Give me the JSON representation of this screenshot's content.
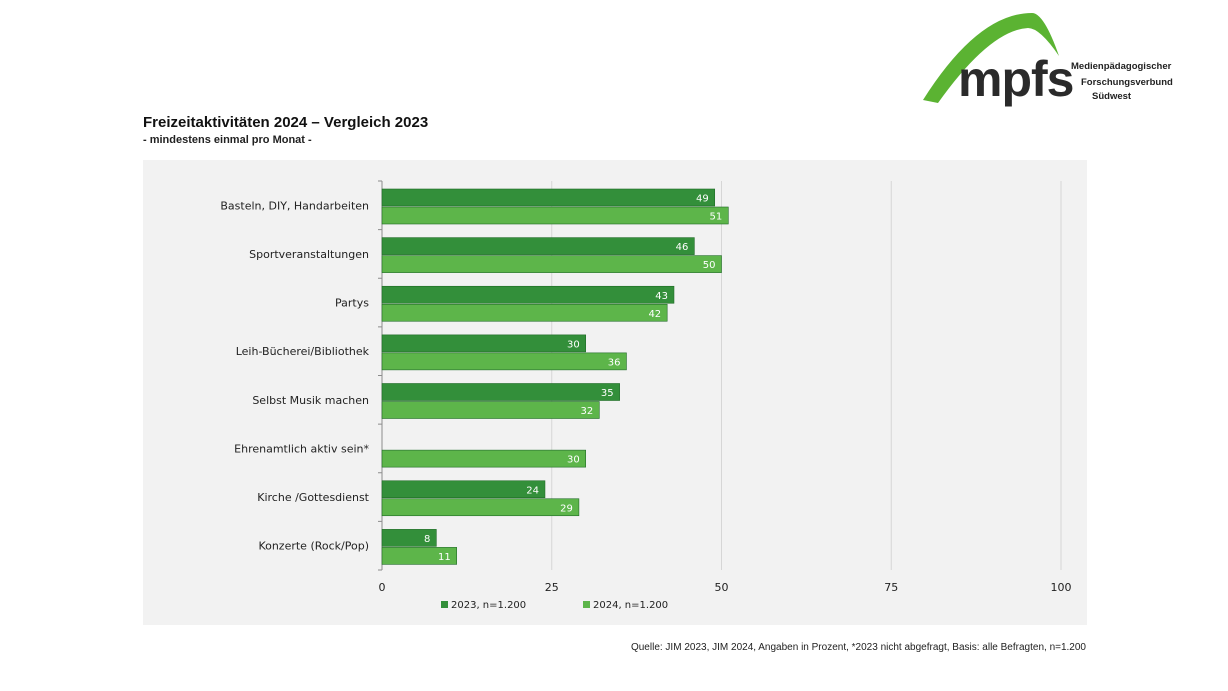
{
  "logo": {
    "wordmark": "mpfs",
    "line1": "Medienpädagogischer",
    "line2": "Forschungsverbund",
    "line3": "Südwest",
    "colors": {
      "arc": "#5bb332",
      "text": "#2a2a2a"
    }
  },
  "source_note": "Quelle: JIM 2023, JIM 2024, Angaben in Prozent, *2023 nicht abgefragt, Basis: alle Befragten, n=1.200",
  "chart_data": {
    "type": "bar",
    "orientation": "horizontal",
    "title": "Freizeitaktivitäten 2024 – Vergleich 2023",
    "subtitle": "- mindestens einmal pro Monat -",
    "categories": [
      "Basteln, DIY, Handarbeiten",
      "Sportveranstaltungen",
      "Partys",
      "Leih-Bücherei/Bibliothek",
      "Selbst Musik machen",
      "Ehrenamtlich aktiv sein*",
      "Kirche /Gottesdienst",
      "Konzerte (Rock/Pop)"
    ],
    "series": [
      {
        "name": "2023, n=1.200",
        "color": "#338f3a",
        "values": [
          49,
          46,
          43,
          30,
          35,
          null,
          24,
          8
        ]
      },
      {
        "name": "2024, n=1.200",
        "color": "#5db54a",
        "values": [
          51,
          50,
          42,
          36,
          32,
          30,
          29,
          11
        ]
      }
    ],
    "xlim": [
      0,
      100
    ],
    "xticks": [
      0,
      25,
      50,
      75,
      100
    ],
    "grid": true,
    "legend_position": "bottom",
    "data_labels": true
  }
}
